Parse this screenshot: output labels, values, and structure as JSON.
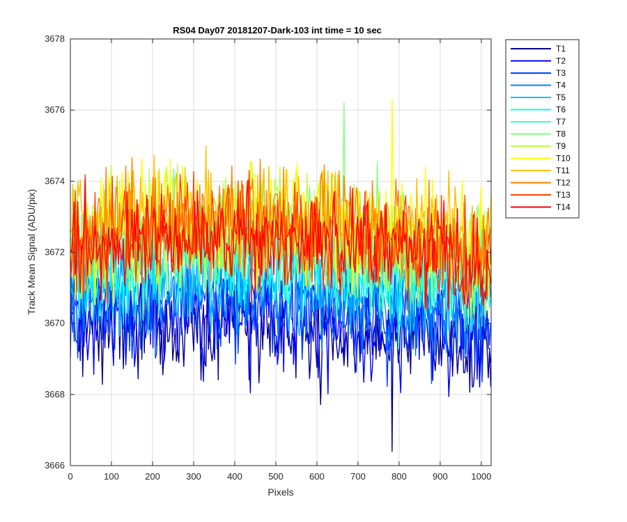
{
  "chart_data": {
    "type": "line",
    "title": "RS04 Day07 20181207-Dark-103 int time = 10 sec",
    "xlabel": "Pixels",
    "ylabel": "Track Mean Signal (ADU/pix)",
    "xlim": [
      0,
      1024
    ],
    "ylim": [
      3666,
      3678
    ],
    "xticks": [
      0,
      100,
      200,
      300,
      400,
      500,
      600,
      700,
      800,
      900,
      1000
    ],
    "yticks": [
      3666,
      3668,
      3670,
      3672,
      3674,
      3676,
      3678
    ],
    "grid": true,
    "legend_position": "outside-top-right",
    "x_step": 3,
    "series": [
      {
        "name": "T1",
        "color": "#00008F",
        "mean": [
          3669.8,
          3670.0,
          3669.7,
          3669.3
        ],
        "noise": 0.75,
        "min_value": 3666.4
      },
      {
        "name": "T2",
        "color": "#0000FF",
        "mean": [
          3670.0,
          3670.3,
          3670.0,
          3669.5
        ],
        "noise": 0.75
      },
      {
        "name": "T3",
        "color": "#0040FF",
        "mean": [
          3670.4,
          3670.7,
          3670.4,
          3669.9
        ],
        "noise": 0.7
      },
      {
        "name": "T4",
        "color": "#0080FF",
        "mean": [
          3670.8,
          3671.1,
          3670.8,
          3670.3
        ],
        "noise": 0.7
      },
      {
        "name": "T5",
        "color": "#00BFFF",
        "mean": [
          3671.1,
          3671.4,
          3671.2,
          3670.6
        ],
        "noise": 0.7
      },
      {
        "name": "T6",
        "color": "#00FFFF",
        "mean": [
          3671.4,
          3671.8,
          3671.5,
          3670.9
        ],
        "noise": 0.7
      },
      {
        "name": "T7",
        "color": "#40FFBF",
        "mean": [
          3671.8,
          3672.2,
          3671.9,
          3671.3
        ],
        "noise": 0.75
      },
      {
        "name": "T8",
        "color": "#80FF80",
        "mean": [
          3672.2,
          3672.6,
          3672.4,
          3671.7
        ],
        "noise": 0.8,
        "max_value": 3676.2
      },
      {
        "name": "T9",
        "color": "#BFFF40",
        "mean": [
          3672.5,
          3672.9,
          3672.6,
          3671.9
        ],
        "noise": 0.8
      },
      {
        "name": "T10",
        "color": "#FFFF00",
        "mean": [
          3672.6,
          3673.0,
          3672.8,
          3672.1
        ],
        "noise": 0.8,
        "max_value": 3676.3
      },
      {
        "name": "T11",
        "color": "#FFBF00",
        "mean": [
          3672.8,
          3673.1,
          3672.9,
          3672.2
        ],
        "noise": 0.8
      },
      {
        "name": "T12",
        "color": "#FF8000",
        "mean": [
          3672.6,
          3672.9,
          3672.7,
          3672.0
        ],
        "noise": 0.8
      },
      {
        "name": "T13",
        "color": "#FF4000",
        "mean": [
          3672.3,
          3672.6,
          3672.4,
          3671.8
        ],
        "noise": 0.75
      },
      {
        "name": "T14",
        "color": "#FF0000",
        "mean": [
          3672.2,
          3672.5,
          3672.3,
          3671.6
        ],
        "noise": 0.7
      }
    ]
  }
}
